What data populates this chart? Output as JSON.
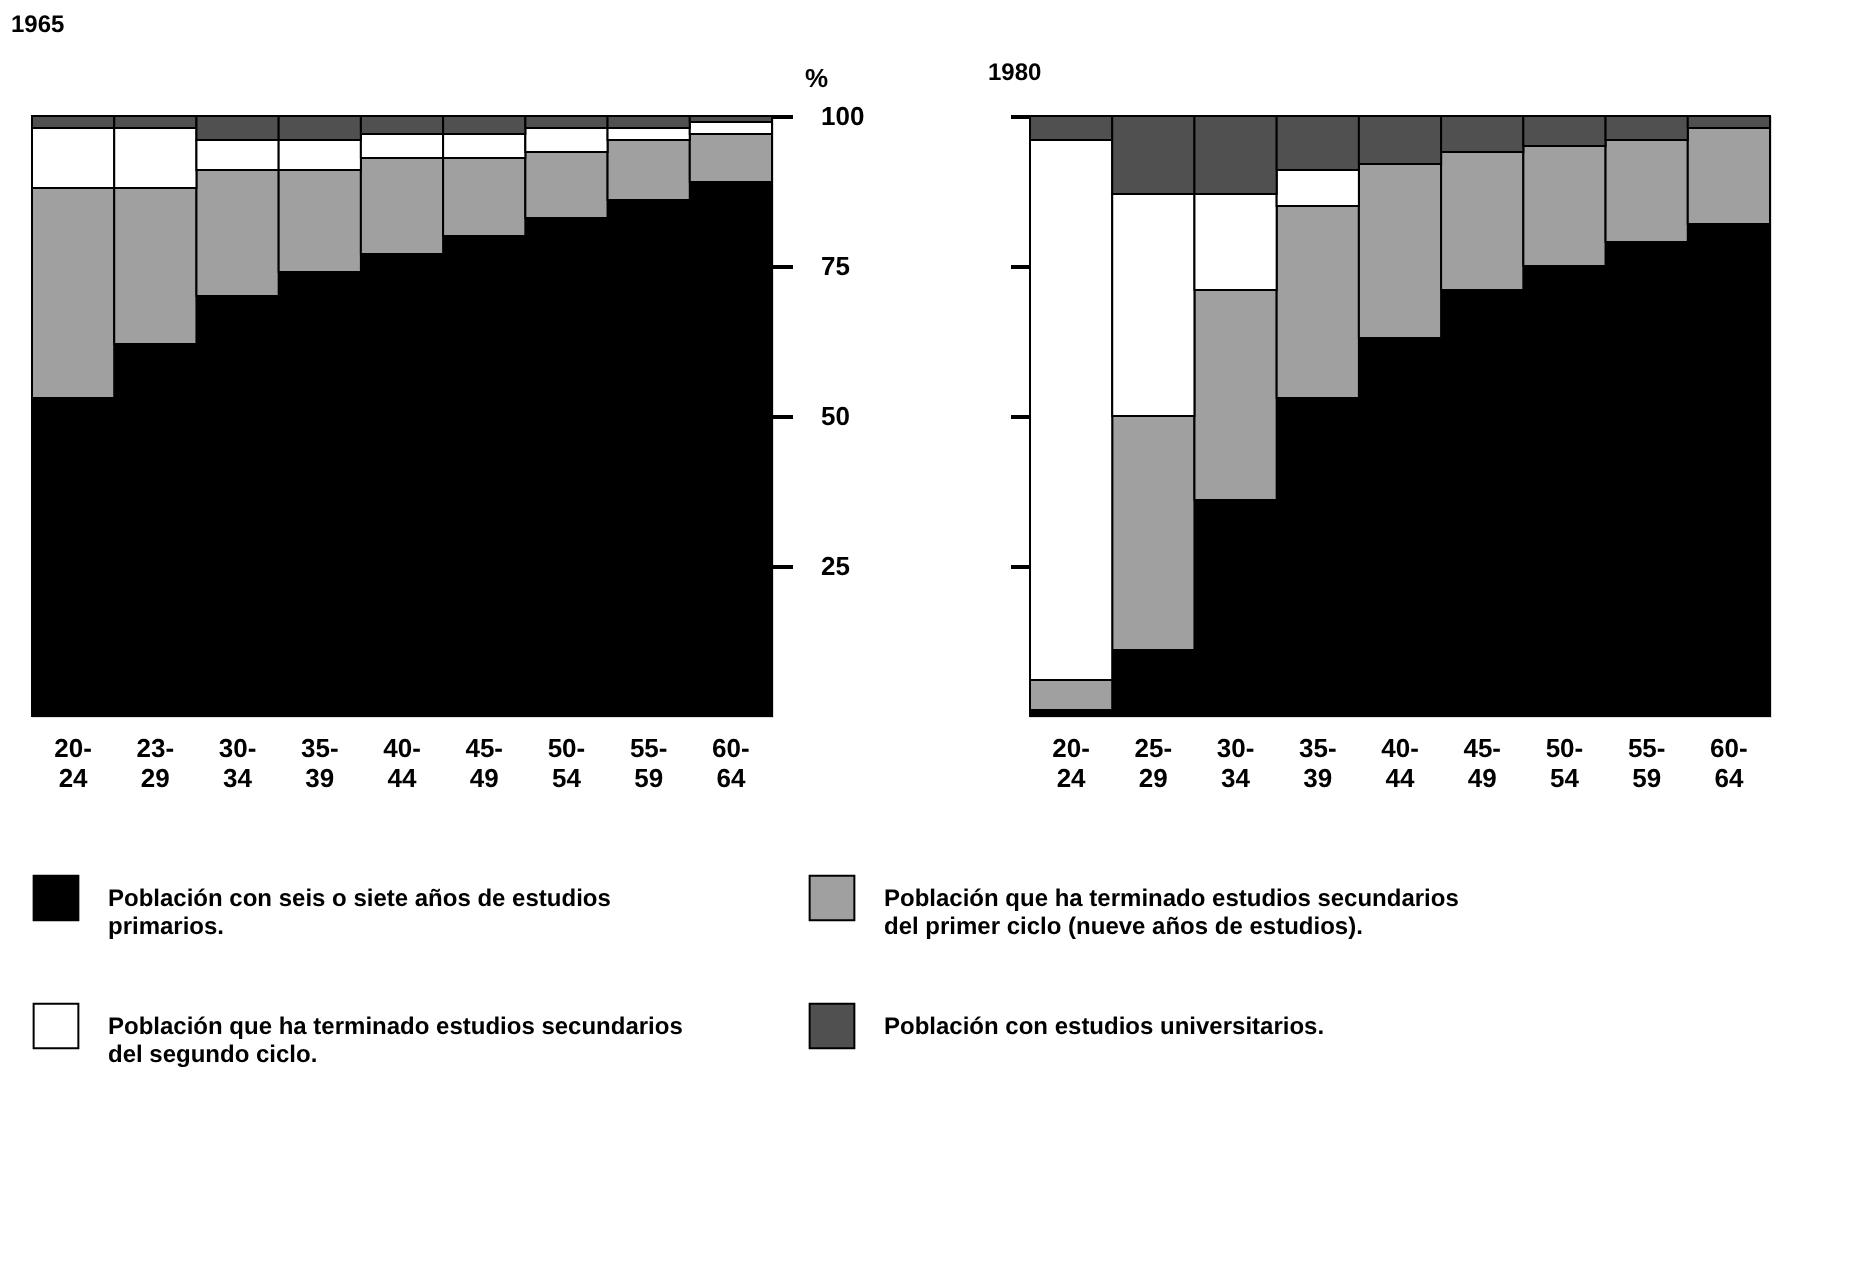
{
  "chart_data": [
    {
      "type": "bar",
      "title": "1965",
      "ylabel": "%",
      "stacked": true,
      "legend": "bottom",
      "categories": [
        "20-24",
        "23-29",
        "30-34",
        "35-39",
        "40-44",
        "45-49",
        "50-54",
        "55-59",
        "60-64"
      ],
      "ylim": [
        0,
        100
      ],
      "yticks": [
        25,
        50,
        75,
        100
      ],
      "series": [
        {
          "name": "Población con seis o siete años de estudios primarios.",
          "color": "#000000",
          "values": [
            53,
            62,
            70,
            74,
            77,
            80,
            83,
            86,
            89
          ]
        },
        {
          "name": "Población que ha terminado estudios secundarios del primer ciclo (nueve años de estudios).",
          "color": "#a0a0a0",
          "values": [
            35,
            26,
            21,
            17,
            16,
            13,
            11,
            10,
            8
          ]
        },
        {
          "name": "Población que ha terminado estudios secundarios del segundo ciclo.",
          "color": "#ffffff",
          "values": [
            10,
            10,
            5,
            5,
            4,
            4,
            4,
            2,
            2
          ]
        },
        {
          "name": "Población con estudios universitarios.",
          "color": "#505050",
          "values": [
            2,
            2,
            4,
            4,
            3,
            3,
            2,
            2,
            1
          ]
        }
      ]
    },
    {
      "type": "bar",
      "title": "1980",
      "stacked": true,
      "legend": "bottom",
      "tick_labels": "x",
      "categories": [
        "20-24",
        "25-29",
        "30-34",
        "35-39",
        "40-44",
        "45-49",
        "50-54",
        "55-59",
        "60-64"
      ],
      "ylim": [
        0,
        100
      ],
      "yticks": [
        25,
        50,
        75,
        100
      ],
      "series": [
        {
          "name": "Población con seis o siete años de estudios primarios.",
          "color": "#000000",
          "values": [
            1,
            11,
            36,
            53,
            63,
            71,
            75,
            79,
            82
          ]
        },
        {
          "name": "Población que ha terminado estudios secundarios del primer ciclo (nueve años de estudios).",
          "color": "#a0a0a0",
          "values": [
            5,
            39,
            35,
            32,
            29,
            23,
            20,
            17,
            16
          ]
        },
        {
          "name": "Población que ha terminado estudios secundarios del segundo ciclo.",
          "color": "#ffffff",
          "values": [
            90,
            37,
            16,
            6,
            0,
            0,
            0,
            0,
            0
          ]
        },
        {
          "name": "Población con estudios universitarios.",
          "color": "#505050",
          "values": [
            4,
            13,
            13,
            9,
            8,
            6,
            5,
            4,
            2
          ]
        }
      ]
    }
  ]
}
